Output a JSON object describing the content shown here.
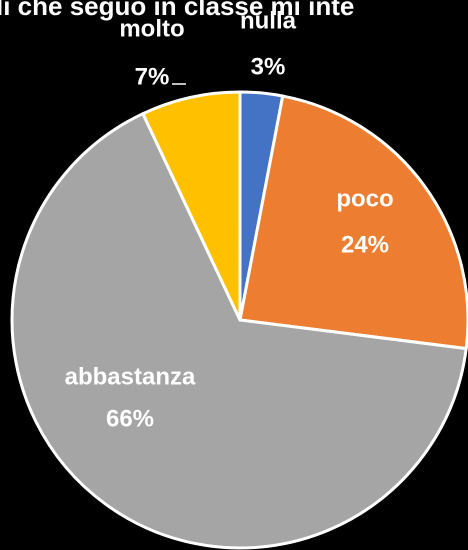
{
  "chart_data": {
    "type": "pie",
    "title": "li che seguo in classe mi inte",
    "categories": [
      "nulla",
      "poco",
      "abbastanza",
      "molto"
    ],
    "values": [
      3,
      24,
      66,
      7
    ],
    "value_labels": [
      "3%",
      "24%",
      "66%",
      "7%"
    ],
    "colors": [
      "#4472c4",
      "#ed7d31",
      "#a5a5a5",
      "#ffc000"
    ]
  }
}
